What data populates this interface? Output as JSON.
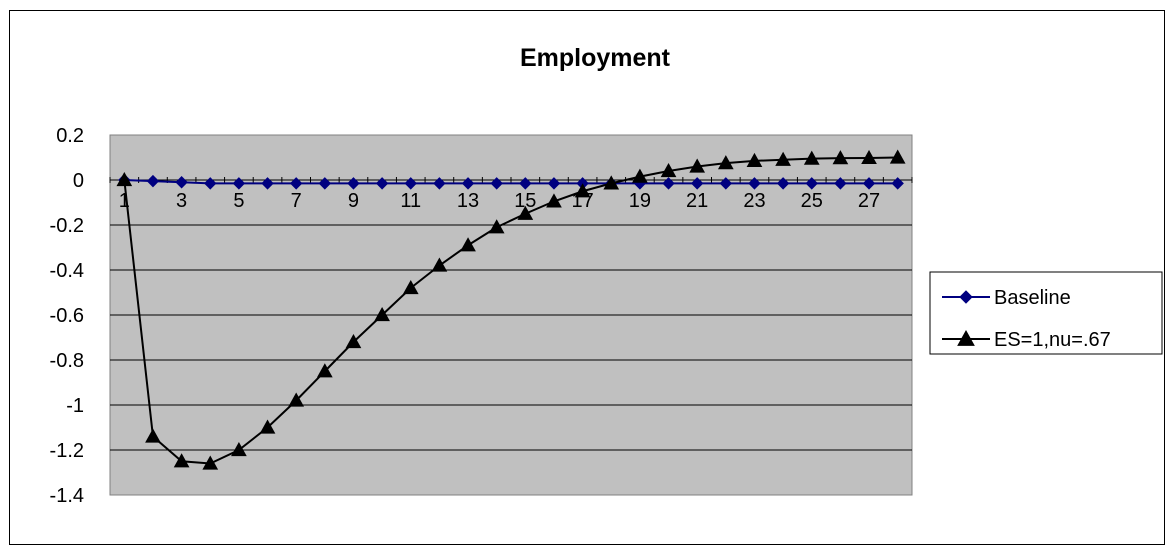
{
  "chart_data": {
    "type": "line",
    "title": "Employment",
    "xlabel": "",
    "ylabel": "",
    "x": [
      1,
      2,
      3,
      4,
      5,
      6,
      7,
      8,
      9,
      10,
      11,
      12,
      13,
      14,
      15,
      16,
      17,
      18,
      19,
      20,
      21,
      22,
      23,
      24,
      25,
      26,
      27,
      28
    ],
    "x_tick_labels": [
      "1",
      "3",
      "5",
      "7",
      "9",
      "11",
      "13",
      "15",
      "17",
      "19",
      "21",
      "23",
      "25",
      "27"
    ],
    "y_ticks": [
      0.2,
      0,
      -0.2,
      -0.4,
      -0.6,
      -0.8,
      -1,
      -1.2,
      -1.4
    ],
    "y_tick_labels": [
      "0.2",
      "0",
      "-0.2",
      "-0.4",
      "-0.6",
      "-0.8",
      "-1",
      "-1.2",
      "-1.4"
    ],
    "ylim": [
      -1.4,
      0.2
    ],
    "grid": true,
    "legend_position": "right",
    "plot_background": "#c0c0c0",
    "series": [
      {
        "name": "Baseline",
        "color": "#000080",
        "marker": "diamond",
        "values": [
          0,
          -0.005,
          -0.01,
          -0.015,
          -0.015,
          -0.015,
          -0.015,
          -0.015,
          -0.015,
          -0.015,
          -0.015,
          -0.015,
          -0.015,
          -0.015,
          -0.015,
          -0.015,
          -0.015,
          -0.015,
          -0.015,
          -0.015,
          -0.015,
          -0.015,
          -0.015,
          -0.015,
          -0.015,
          -0.015,
          -0.015,
          -0.015
        ]
      },
      {
        "name": "ES=1,nu=.67",
        "color": "#000000",
        "marker": "triangle",
        "values": [
          0,
          -1.14,
          -1.25,
          -1.26,
          -1.2,
          -1.1,
          -0.98,
          -0.85,
          -0.72,
          -0.6,
          -0.48,
          -0.38,
          -0.29,
          -0.21,
          -0.15,
          -0.095,
          -0.05,
          -0.015,
          0.015,
          0.04,
          0.06,
          0.075,
          0.085,
          0.09,
          0.095,
          0.097,
          0.098,
          0.1
        ]
      }
    ]
  }
}
